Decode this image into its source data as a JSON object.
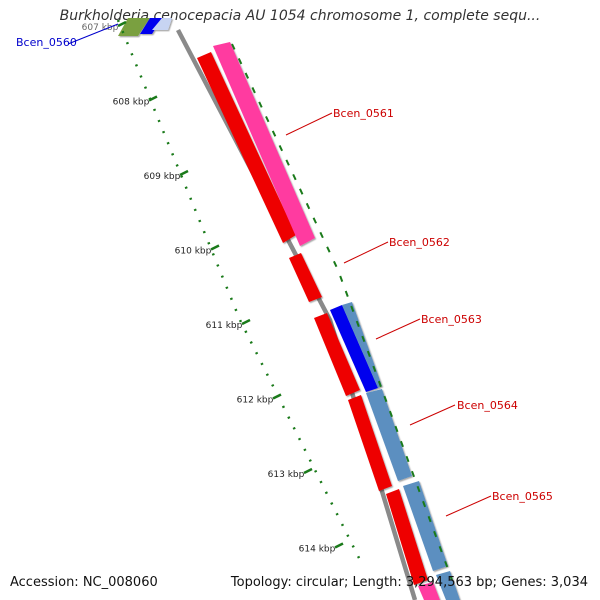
{
  "title": "Burkholderia cenocepacia AU 1054 chromosome 1, complete sequ...",
  "accession_text": "Accession: NC_008060",
  "topology_text": "Topology: circular; Length: 3,294,563 bp; Genes: 3,034",
  "ticks": [
    {
      "label": "607 kbp",
      "kbp": 607
    },
    {
      "label": "608 kbp",
      "kbp": 608
    },
    {
      "label": "609 kbp",
      "kbp": 609
    },
    {
      "label": "610 kbp",
      "kbp": 610
    },
    {
      "label": "611 kbp",
      "kbp": 611
    },
    {
      "label": "612 kbp",
      "kbp": 612
    },
    {
      "label": "613 kbp",
      "kbp": 613
    },
    {
      "label": "614 kbp",
      "kbp": 614
    }
  ],
  "gene_labels": [
    {
      "name": "Bcen_0560",
      "color": "#0000cc"
    },
    {
      "name": "Bcen_0561",
      "color": "#cc0000"
    },
    {
      "name": "Bcen_0562",
      "color": "#cc0000"
    },
    {
      "name": "Bcen_0563",
      "color": "#cc0000"
    },
    {
      "name": "Bcen_0564",
      "color": "#cc0000"
    },
    {
      "name": "Bcen_0565",
      "color": "#cc0000"
    }
  ],
  "colors": {
    "backbone": "#8a8a8a",
    "gene_red": "#ee0000",
    "gene_pink": "#ff3aa0",
    "gene_blue": "#0000ee",
    "gene_steelblue": "#5b8fc0",
    "gene_olive": "#7aa040",
    "gene_lightblue": "#c7d4f2",
    "tick_green": "#1a7a1a"
  }
}
